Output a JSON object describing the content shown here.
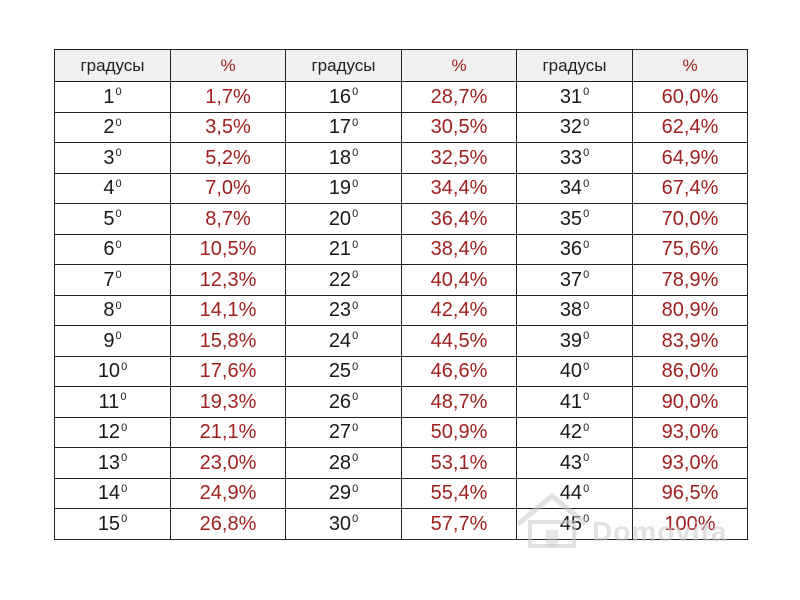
{
  "table": {
    "headers": [
      "градусы",
      "%",
      "градусы",
      "%",
      "градусы",
      "%"
    ],
    "degree_suffix": "0",
    "rows": [
      [
        {
          "deg": "1",
          "pct": "1,7%"
        },
        {
          "deg": "16",
          "pct": "28,7%"
        },
        {
          "deg": "31",
          "pct": "60,0%"
        }
      ],
      [
        {
          "deg": "2",
          "pct": "3,5%"
        },
        {
          "deg": "17",
          "pct": "30,5%"
        },
        {
          "deg": "32",
          "pct": "62,4%"
        }
      ],
      [
        {
          "deg": "3",
          "pct": "5,2%"
        },
        {
          "deg": "18",
          "pct": "32,5%"
        },
        {
          "deg": "33",
          "pct": "64,9%"
        }
      ],
      [
        {
          "deg": "4",
          "pct": "7,0%"
        },
        {
          "deg": "19",
          "pct": "34,4%"
        },
        {
          "deg": "34",
          "pct": "67,4%"
        }
      ],
      [
        {
          "deg": "5",
          "pct": "8,7%"
        },
        {
          "deg": "20",
          "pct": "36,4%"
        },
        {
          "deg": "35",
          "pct": "70,0%"
        }
      ],
      [
        {
          "deg": "6",
          "pct": "10,5%"
        },
        {
          "deg": "21",
          "pct": "38,4%"
        },
        {
          "deg": "36",
          "pct": "75,6%"
        }
      ],
      [
        {
          "deg": "7",
          "pct": "12,3%"
        },
        {
          "deg": "22",
          "pct": "40,4%"
        },
        {
          "deg": "37",
          "pct": "78,9%"
        }
      ],
      [
        {
          "deg": "8",
          "pct": "14,1%"
        },
        {
          "deg": "23",
          "pct": "42,4%"
        },
        {
          "deg": "38",
          "pct": "80,9%"
        }
      ],
      [
        {
          "deg": "9",
          "pct": "15,8%"
        },
        {
          "deg": "24",
          "pct": "44,5%"
        },
        {
          "deg": "39",
          "pct": "83,9%"
        }
      ],
      [
        {
          "deg": "10",
          "pct": "17,6%"
        },
        {
          "deg": "25",
          "pct": "46,6%"
        },
        {
          "deg": "40",
          "pct": "86,0%"
        }
      ],
      [
        {
          "deg": "11",
          "pct": "19,3%"
        },
        {
          "deg": "26",
          "pct": "48,7%"
        },
        {
          "deg": "41",
          "pct": "90,0%"
        }
      ],
      [
        {
          "deg": "12",
          "pct": "21,1%"
        },
        {
          "deg": "27",
          "pct": "50,9%"
        },
        {
          "deg": "42",
          "pct": "93,0%"
        }
      ],
      [
        {
          "deg": "13",
          "pct": "23,0%"
        },
        {
          "deg": "28",
          "pct": "53,1%"
        },
        {
          "deg": "43",
          "pct": "93,0%"
        }
      ],
      [
        {
          "deg": "14",
          "pct": "24,9%"
        },
        {
          "deg": "29",
          "pct": "55,4%"
        },
        {
          "deg": "44",
          "pct": "96,5%"
        }
      ],
      [
        {
          "deg": "15",
          "pct": "26,8%"
        },
        {
          "deg": "30",
          "pct": "57,7%"
        },
        {
          "deg": "45",
          "pct": "100%"
        }
      ]
    ]
  },
  "watermark": {
    "text": "Domovita",
    "icon": "house-logo-icon"
  },
  "colors": {
    "percent_text": "#a01f1f",
    "degree_text": "#1a1a1a",
    "header_bg": "#f0f0f0",
    "border": "#222222"
  }
}
